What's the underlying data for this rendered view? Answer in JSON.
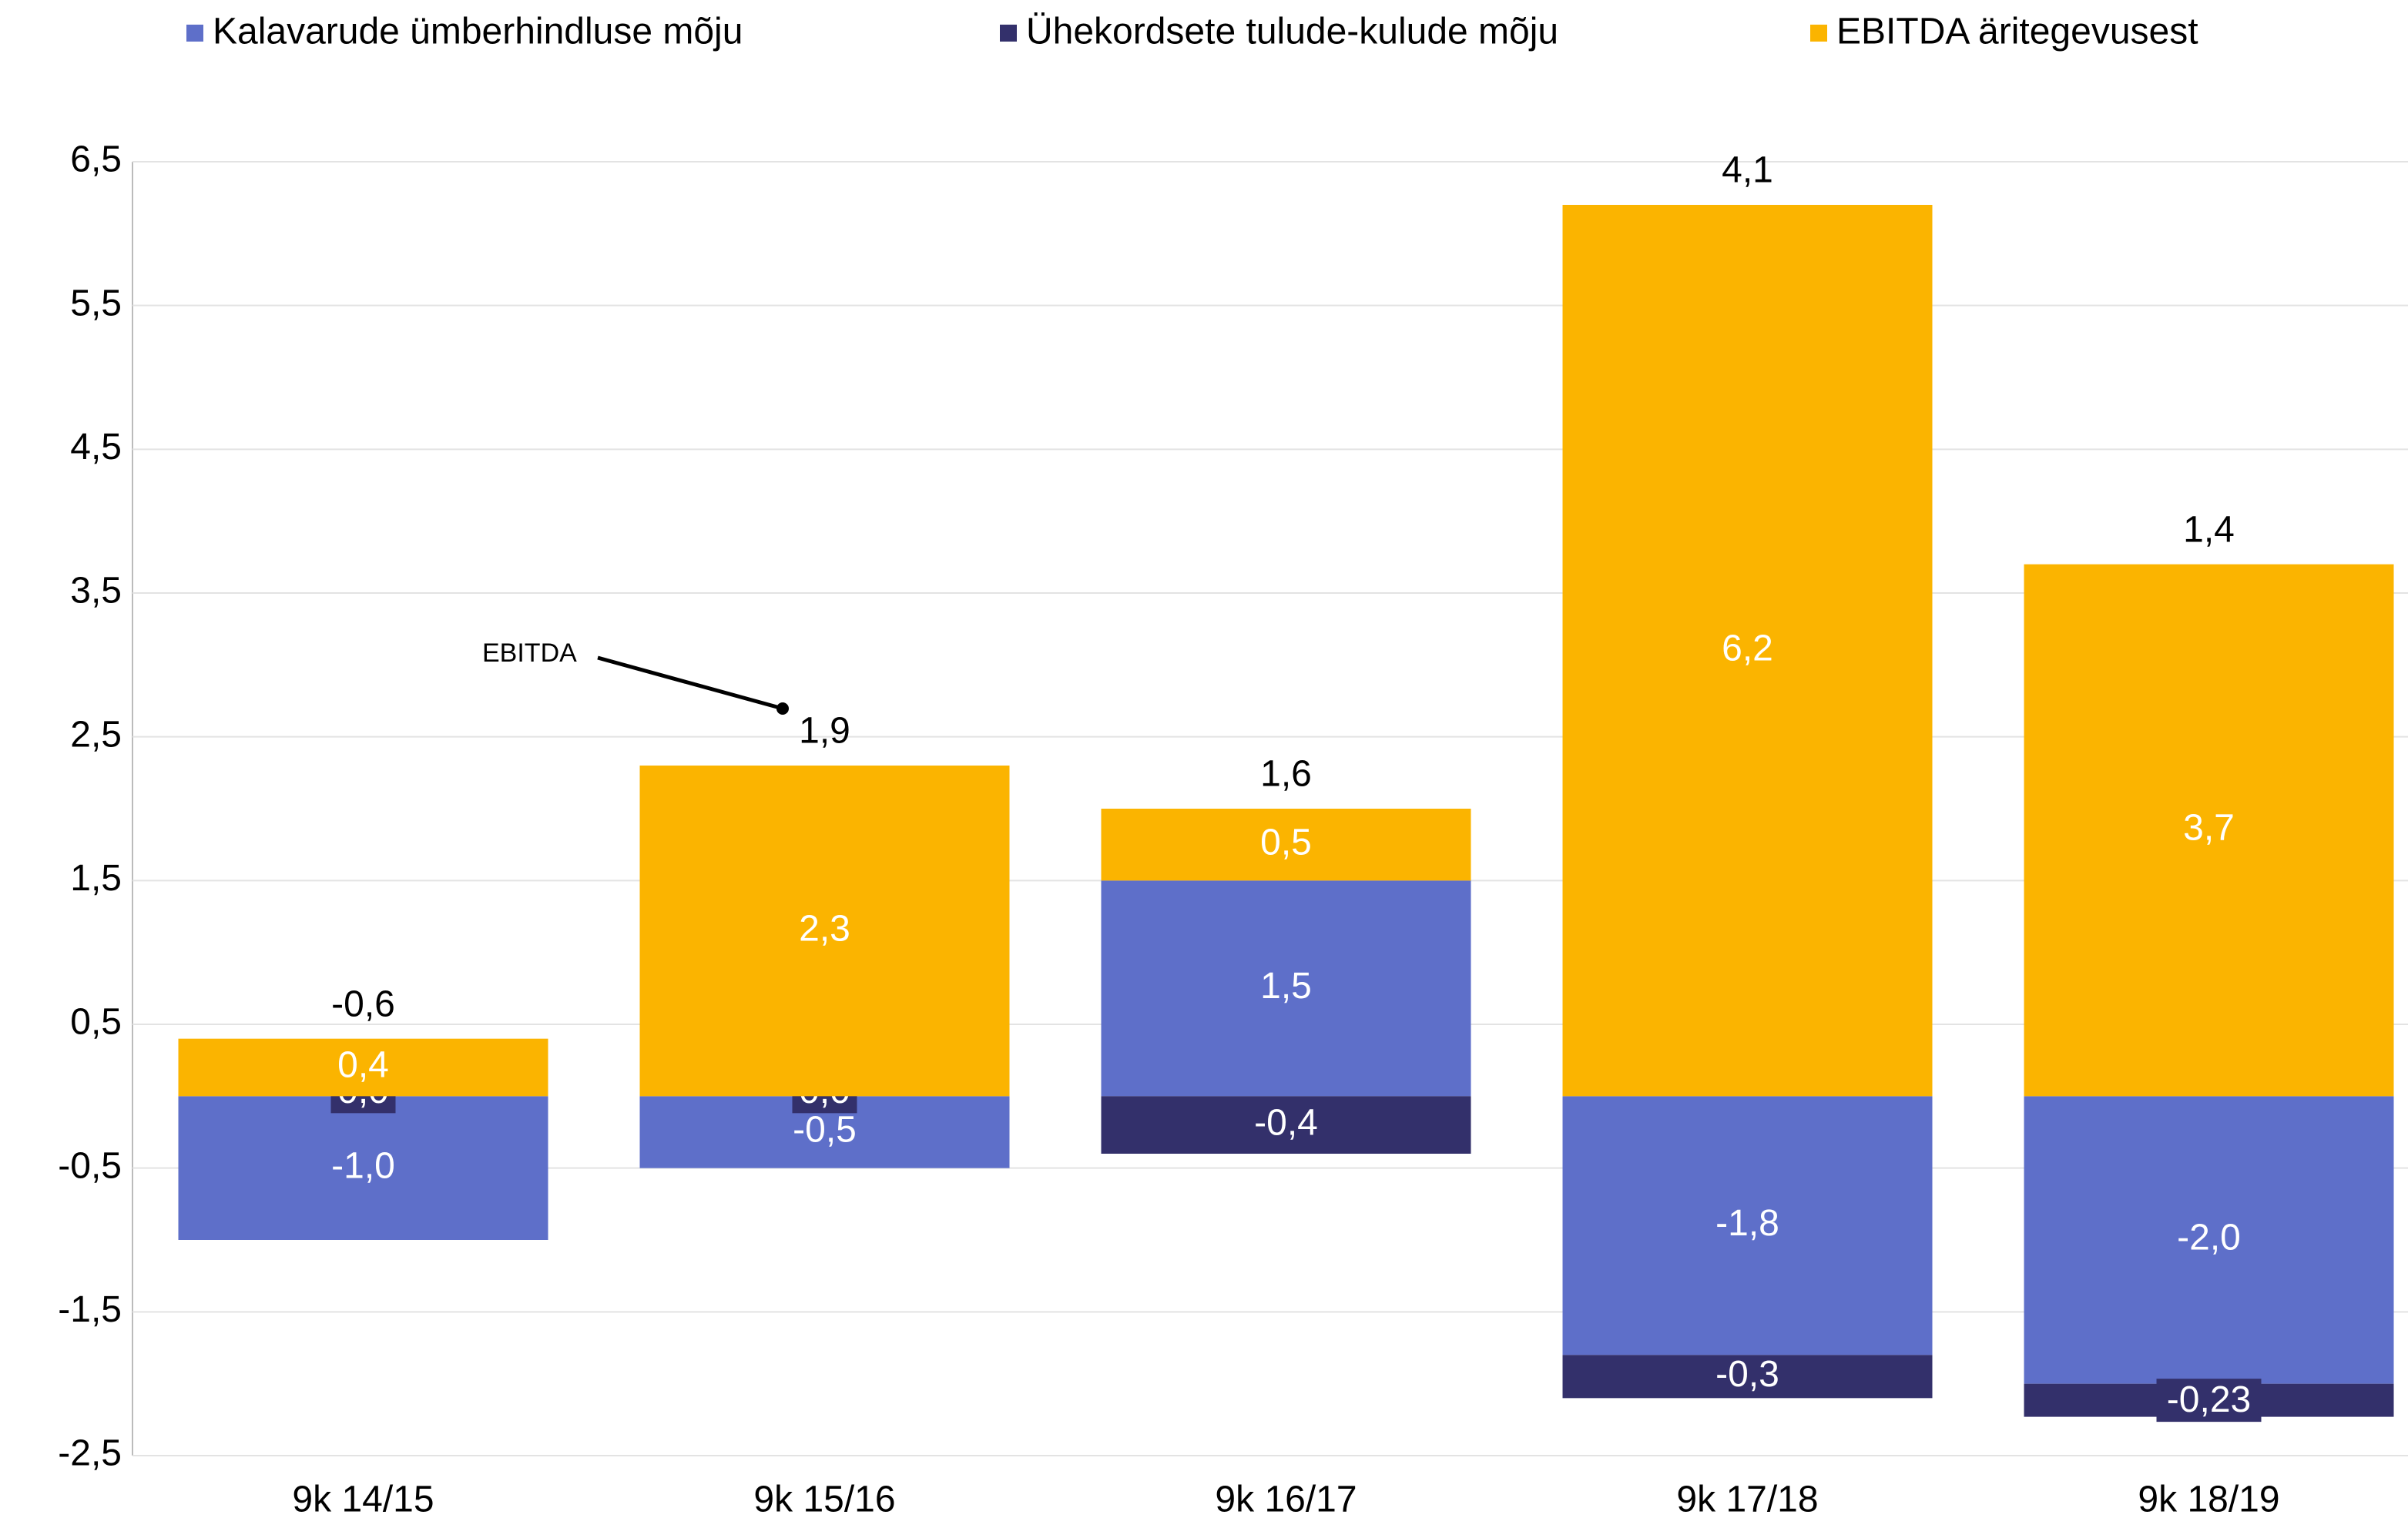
{
  "chart_data": {
    "type": "stacked-bar",
    "categories": [
      "9k 14/15",
      "9k 15/16",
      "9k 16/17",
      "9k 17/18",
      "9k 18/19"
    ],
    "series": [
      {
        "name": "Kalavarude ümberhindluse mõju",
        "color": "#5e6fc9",
        "values": [
          -1.0,
          -0.5,
          1.5,
          -1.8,
          -2.0
        ],
        "value_labels": [
          "-1,0",
          "-0,5",
          "1,5",
          "-1,8",
          "-2,0"
        ]
      },
      {
        "name": "Ühekordsete tulude-kulude mõju",
        "color": "#33306b",
        "values": [
          0.0,
          0.0,
          -0.4,
          -0.3,
          -0.23
        ],
        "value_labels": [
          "0,0",
          "0,0",
          "-0,4",
          "-0,3",
          "-0,23"
        ]
      },
      {
        "name": "EBITDA äritegevusest",
        "color": "#fbb400",
        "values": [
          0.4,
          2.3,
          0.5,
          6.2,
          3.7
        ],
        "value_labels": [
          "0,4",
          "2,3",
          "0,5",
          "6,2",
          "3,7"
        ]
      }
    ],
    "totals": {
      "values": [
        -0.6,
        1.9,
        1.6,
        4.1,
        1.4
      ],
      "value_labels": [
        "-0,6",
        "1,9",
        "1,6",
        "4,1",
        "1,4"
      ]
    },
    "annotation": "EBITDA",
    "ylim": [
      -2.5,
      6.5
    ],
    "yticks": [
      {
        "value": -2.5,
        "label": "-2,5"
      },
      {
        "value": -1.5,
        "label": "-1,5"
      },
      {
        "value": -0.5,
        "label": "-0,5"
      },
      {
        "value": 0.5,
        "label": "0,5"
      },
      {
        "value": 1.5,
        "label": "1,5"
      },
      {
        "value": 2.5,
        "label": "2,5"
      },
      {
        "value": 3.5,
        "label": "3,5"
      },
      {
        "value": 4.5,
        "label": "4,5"
      },
      {
        "value": 5.5,
        "label": "5,5"
      },
      {
        "value": 6.5,
        "label": "6,5"
      }
    ],
    "grid": true,
    "legend": "top"
  }
}
